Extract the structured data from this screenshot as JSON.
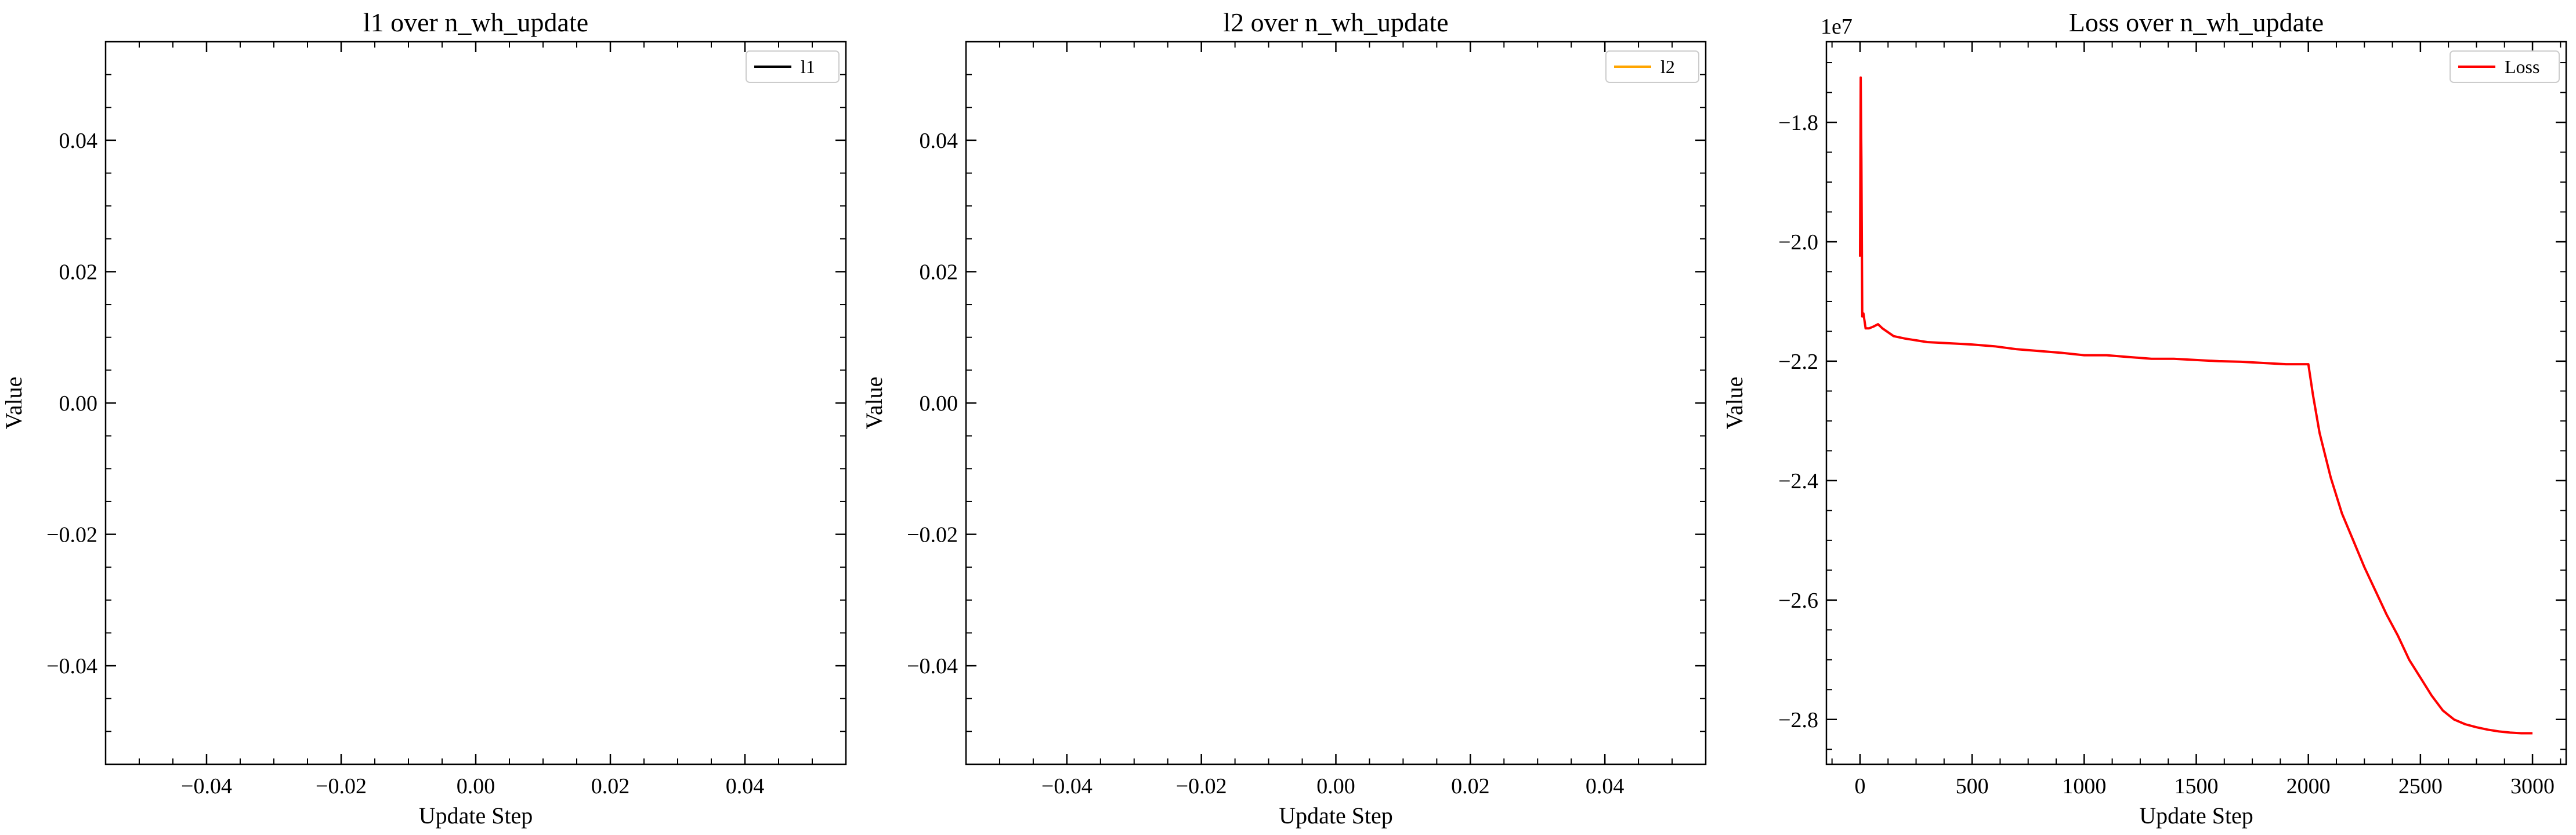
{
  "chart_data": [
    {
      "type": "line",
      "title": "l1 over n_wh_update",
      "xlabel": "Update Step",
      "ylabel": "Value",
      "xlim": [
        -0.055,
        0.055
      ],
      "ylim": [
        -0.055,
        0.055
      ],
      "x_ticks": [
        -0.04,
        -0.02,
        0.0,
        0.02,
        0.04
      ],
      "y_ticks": [
        -0.04,
        -0.02,
        0.0,
        0.02,
        0.04
      ],
      "x_tick_labels": [
        "−0.04",
        "−0.02",
        "0.00",
        "0.02",
        "0.04"
      ],
      "y_tick_labels": [
        "−0.04",
        "−0.02",
        "0.00",
        "0.02",
        "0.04"
      ],
      "exponent_label": "",
      "legend_position": "top-right",
      "series": [
        {
          "name": "l1",
          "color": "#000000",
          "x": [],
          "y": []
        }
      ]
    },
    {
      "type": "line",
      "title": "l2 over n_wh_update",
      "xlabel": "Update Step",
      "ylabel": "Value",
      "xlim": [
        -0.055,
        0.055
      ],
      "ylim": [
        -0.055,
        0.055
      ],
      "x_ticks": [
        -0.04,
        -0.02,
        0.0,
        0.02,
        0.04
      ],
      "y_ticks": [
        -0.04,
        -0.02,
        0.0,
        0.02,
        0.04
      ],
      "x_tick_labels": [
        "−0.04",
        "−0.02",
        "0.00",
        "0.02",
        "0.04"
      ],
      "y_tick_labels": [
        "−0.04",
        "−0.02",
        "0.00",
        "0.02",
        "0.04"
      ],
      "exponent_label": "",
      "legend_position": "top-right",
      "series": [
        {
          "name": "l2",
          "color": "#ffa500",
          "x": [],
          "y": []
        }
      ]
    },
    {
      "type": "line",
      "title": "Loss over n_wh_update",
      "xlabel": "Update Step",
      "ylabel": "Value",
      "xlim": [
        -150,
        3150
      ],
      "ylim": [
        -2.875,
        -1.665
      ],
      "x_ticks": [
        0,
        500,
        1000,
        1500,
        2000,
        2500,
        3000
      ],
      "y_ticks": [
        -2.8,
        -2.6,
        -2.4,
        -2.2,
        -2.0,
        -1.8
      ],
      "x_tick_labels": [
        "0",
        "500",
        "1000",
        "1500",
        "2000",
        "2500",
        "3000"
      ],
      "y_tick_labels": [
        "−2.8",
        "−2.6",
        "−2.4",
        "−2.2",
        "−2.0",
        "−1.8"
      ],
      "exponent_label": "1e7",
      "legend_position": "top-right",
      "series": [
        {
          "name": "Loss",
          "color": "#ff0000",
          "x": [
            0,
            3,
            6,
            10,
            15,
            25,
            40,
            60,
            80,
            100,
            150,
            200,
            300,
            400,
            500,
            600,
            700,
            800,
            900,
            1000,
            1100,
            1200,
            1300,
            1400,
            1500,
            1600,
            1700,
            1800,
            1900,
            2000,
            2020,
            2050,
            2100,
            2150,
            2200,
            2250,
            2300,
            2350,
            2400,
            2450,
            2500,
            2550,
            2600,
            2650,
            2700,
            2750,
            2800,
            2850,
            2900,
            2950,
            3000
          ],
          "y": [
            -2.025,
            -1.725,
            -1.86,
            -2.125,
            -2.12,
            -2.145,
            -2.145,
            -2.142,
            -2.138,
            -2.145,
            -2.158,
            -2.162,
            -2.168,
            -2.17,
            -2.172,
            -2.175,
            -2.18,
            -2.183,
            -2.186,
            -2.19,
            -2.19,
            -2.193,
            -2.196,
            -2.196,
            -2.198,
            -2.2,
            -2.201,
            -2.203,
            -2.205,
            -2.205,
            -2.255,
            -2.32,
            -2.395,
            -2.455,
            -2.5,
            -2.545,
            -2.585,
            -2.625,
            -2.66,
            -2.7,
            -2.73,
            -2.76,
            -2.785,
            -2.8,
            -2.808,
            -2.813,
            -2.817,
            -2.82,
            -2.822,
            -2.823,
            -2.823
          ]
        }
      ]
    }
  ]
}
